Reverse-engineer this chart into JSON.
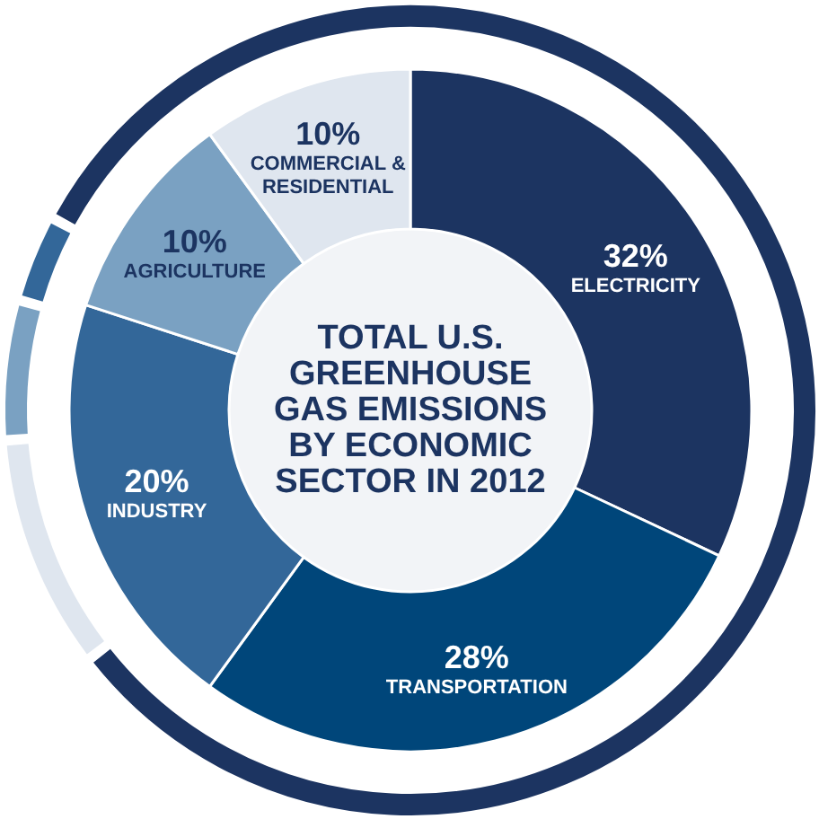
{
  "chart_data": {
    "type": "donut",
    "title": "TOTAL U.S. GREENHOUSE GAS EMISSIONS BY ECONOMIC SECTOR IN 2012",
    "categories": [
      "ELECTRICITY",
      "TRANSPORTATION",
      "INDUSTRY",
      "AGRICULTURE",
      "COMMERCIAL & RESIDENTIAL"
    ],
    "values": [
      32,
      28,
      20,
      10,
      10
    ],
    "value_labels": [
      "32%",
      "28%",
      "20%",
      "10%",
      "10%"
    ],
    "colors": [
      "#1c3461",
      "#00467a",
      "#336799",
      "#7aa1c2",
      "#dfe6ef"
    ]
  }
}
